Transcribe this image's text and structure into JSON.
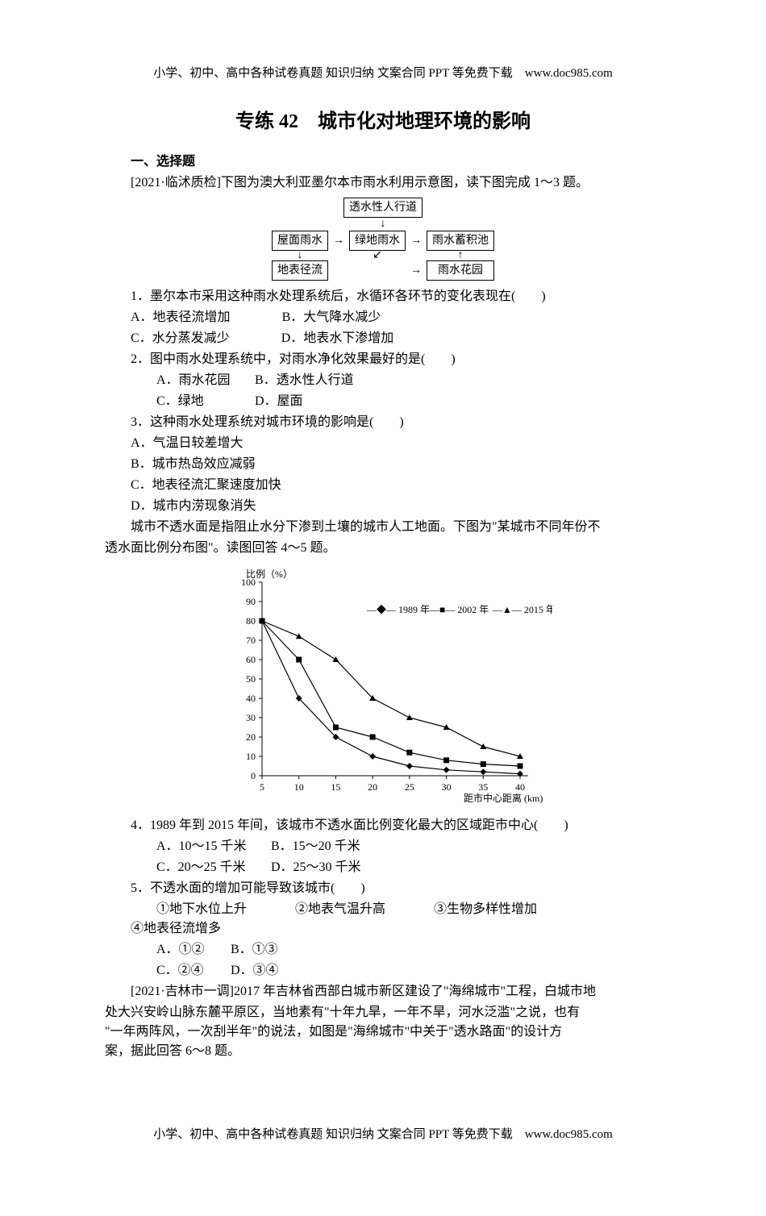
{
  "header": "小学、初中、高中各种试卷真题 知识归纳 文案合同 PPT 等免费下载　www.doc985.com",
  "footer": "小学、初中、高中各种试卷真题 知识归纳 文案合同 PPT 等免费下载　www.doc985.com",
  "title": "专练 42　城市化对地理环境的影响",
  "section1": "一、选择题",
  "intro1": "[2021·临沭质检]下图为澳大利亚墨尔本市雨水利用示意图，读下图完成 1～3 题。",
  "flowchart": {
    "nodes": {
      "a": "透水性人行道",
      "b": "屋面雨水",
      "c": "绿地雨水",
      "d": "雨水蓄积池",
      "e": "地表径流",
      "f": "雨水花园"
    }
  },
  "q1": {
    "stem": "1．墨尔本市采用这种雨水处理系统后，水循环各环节的变化表现在(　　)",
    "A": "A．地表径流增加",
    "B": "B．大气降水减少",
    "C": "C．水分蒸发减少",
    "D": "D．地表水下渗增加"
  },
  "q2": {
    "stem": "2．图中雨水处理系统中，对雨水净化效果最好的是(　　)",
    "A": "A．雨水花园",
    "B": "B．透水性人行道",
    "C": "C．绿地",
    "D": "D．屋面"
  },
  "q3": {
    "stem": "3．这种雨水处理系统对城市环境的影响是(　　)",
    "A": "A．气温日较差增大",
    "B": "B．城市热岛效应减弱",
    "C": "C．地表径流汇聚速度加快",
    "D": "D．城市内涝现象消失"
  },
  "intro2a": "城市不透水面是指阻止水分下渗到土壤的城市人工地面。下图为\"某城市不同年份不",
  "intro2b": "透水面比例分布图\"。读图回答 4～5 题。",
  "chart": {
    "type": "line",
    "background_color": "#ffffff",
    "axis_color": "#000000",
    "line_color": "#000000",
    "title_fontsize": 12,
    "label_fontsize": 12,
    "ylabel": "比例（%）",
    "xlabel": "距市中心距离 (km)",
    "xlim": [
      5,
      40
    ],
    "ylim": [
      0,
      100
    ],
    "xtick_step": 5,
    "ytick_step": 10,
    "xticks": [
      5,
      10,
      15,
      20,
      25,
      30,
      35,
      40
    ],
    "yticks": [
      0,
      10,
      20,
      30,
      40,
      50,
      60,
      70,
      80,
      90,
      100
    ],
    "legend": [
      {
        "label": "1989 年",
        "marker": "diamond"
      },
      {
        "label": "2002 年",
        "marker": "square"
      },
      {
        "label": "2015 年",
        "marker": "triangle"
      }
    ],
    "x": [
      5,
      10,
      15,
      20,
      25,
      30,
      35,
      40
    ],
    "series": {
      "y1989": [
        80,
        40,
        20,
        10,
        5,
        3,
        2,
        1
      ],
      "y2002": [
        80,
        60,
        25,
        20,
        12,
        8,
        6,
        5
      ],
      "y2015": [
        80,
        72,
        60,
        40,
        30,
        25,
        15,
        10
      ]
    }
  },
  "q4": {
    "stem": "4．1989 年到 2015 年间，该城市不透水面比例变化最大的区域距市中心(　　)",
    "A": "A．10～15 千米",
    "B": "B．15～20 千米",
    "C": "C．20～25 千米",
    "D": "D．25～30 千米"
  },
  "q5": {
    "stem": "5．不透水面的增加可能导致该城市(　　)",
    "s1": "①地下水位上升",
    "s2": "②地表气温升高",
    "s3": "③生物多样性增加",
    "s4": "④地表径流增多",
    "A": "A．①②",
    "B": "B．①③",
    "C": "C．②④",
    "D": "D．③④"
  },
  "intro3a": "[2021·吉林市一调]2017 年吉林省西部白城市新区建设了\"海绵城市\"工程，白城市地",
  "intro3b": "处大兴安岭山脉东麓平原区，当地素有\"十年九旱，一年不旱，河水泛滥\"之说，也有",
  "intro3c": "\"一年两阵风，一次刮半年\"的说法，如图是\"海绵城市\"中关于\"透水路面\"的设计方",
  "intro3d": "案，据此回答 6～8 题。"
}
